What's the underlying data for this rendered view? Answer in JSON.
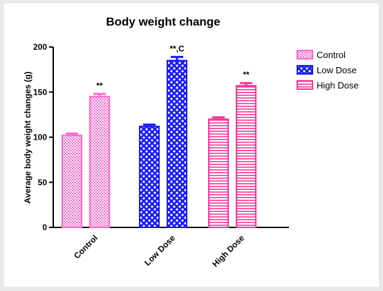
{
  "chart_data": {
    "type": "bar",
    "title": "Body weight change",
    "ylabel": "Average body weight changes (g)",
    "xlabel": "",
    "ylim": [
      0,
      200
    ],
    "yticks": [
      0,
      50,
      100,
      150,
      200
    ],
    "categories": [
      "Control",
      "Low Dose",
      "High Dose"
    ],
    "series": [
      {
        "name": "Control",
        "group": "Control",
        "color": "#ff66cc",
        "pattern": "checker-pink",
        "bars": [
          {
            "label": "",
            "value": 102,
            "error": 2,
            "annotation": ""
          },
          {
            "label": "",
            "value": 145,
            "error": 3,
            "annotation": "**"
          }
        ]
      },
      {
        "name": "Low Dose",
        "group": "Low Dose",
        "color": "#1a1aff",
        "pattern": "checker-blue",
        "bars": [
          {
            "label": "",
            "value": 112,
            "error": 2,
            "annotation": ""
          },
          {
            "label": "",
            "value": 185,
            "error": 4,
            "annotation": "**,C"
          }
        ]
      },
      {
        "name": "High Dose",
        "group": "High Dose",
        "color": "#ff3399",
        "pattern": "horizontal-lines",
        "bars": [
          {
            "label": "",
            "value": 120,
            "error": 2,
            "annotation": ""
          },
          {
            "label": "",
            "value": 157,
            "error": 3,
            "annotation": "**"
          }
        ]
      }
    ],
    "legend": {
      "placement": "right",
      "entries": [
        "Control",
        "Low Dose",
        "High Dose"
      ]
    },
    "grid": false
  }
}
